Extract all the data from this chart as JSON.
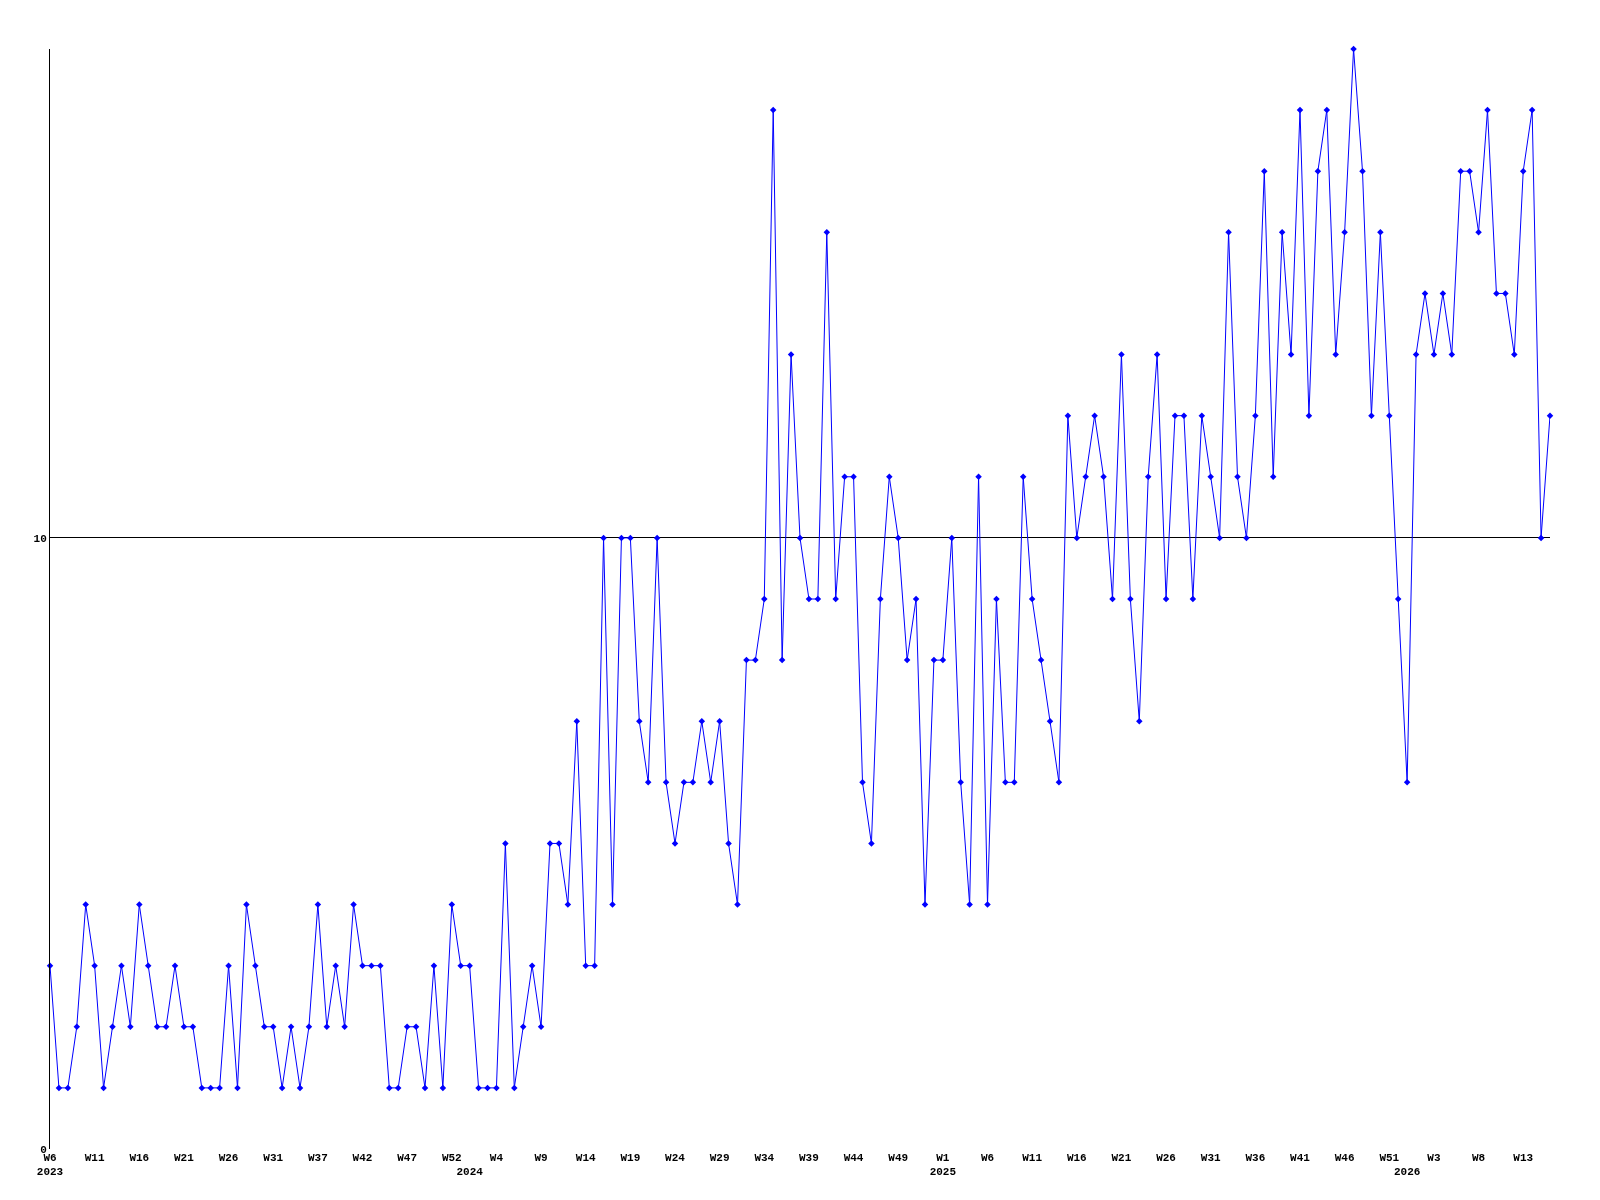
{
  "chart_data": {
    "type": "line",
    "categories": [
      "W6\n2023",
      null,
      null,
      null,
      null,
      "W11",
      null,
      null,
      null,
      null,
      "W16",
      null,
      null,
      null,
      null,
      "W21",
      null,
      null,
      null,
      null,
      "W26",
      null,
      null,
      null,
      null,
      "W31",
      null,
      null,
      null,
      null,
      "W37",
      null,
      null,
      null,
      null,
      "W42",
      null,
      null,
      null,
      null,
      "W47",
      null,
      null,
      null,
      null,
      "W52",
      null,
      "\n2024",
      null,
      null,
      "W4",
      null,
      null,
      null,
      null,
      "W9",
      null,
      null,
      null,
      null,
      "W14",
      null,
      null,
      null,
      null,
      "W19",
      null,
      null,
      null,
      null,
      "W24",
      null,
      null,
      null,
      null,
      "W29",
      null,
      null,
      null,
      null,
      "W34",
      null,
      null,
      null,
      null,
      "W39",
      null,
      null,
      null,
      null,
      "W44",
      null,
      null,
      null,
      null,
      "W49",
      null,
      null,
      null,
      null,
      "W1\n2025",
      null,
      null,
      null,
      null,
      "W6",
      null,
      null,
      null,
      null,
      "W11",
      null,
      null,
      null,
      null,
      "W16",
      null,
      null,
      null,
      null,
      "W21",
      null,
      null,
      null,
      null,
      "W26",
      null,
      null,
      null,
      null,
      "W31",
      null,
      null,
      null,
      null,
      "W36",
      null,
      null,
      null,
      null,
      "W41",
      null,
      null,
      null,
      null,
      "W46",
      null,
      null,
      null,
      null,
      "W51",
      null,
      "\n2026",
      null,
      null,
      "W3",
      null,
      null,
      null,
      null,
      "W8",
      null,
      null,
      null,
      null,
      "W13",
      null,
      null,
      null
    ],
    "series": [
      {
        "color": "#0000ff",
        "values": [
          3,
          1,
          1,
          2,
          4,
          3,
          1,
          2,
          3,
          2,
          4,
          3,
          2,
          2,
          3,
          2,
          2,
          1,
          1,
          1,
          3,
          1,
          4,
          3,
          2,
          2,
          1,
          2,
          1,
          2,
          4,
          2,
          3,
          2,
          4,
          3,
          3,
          3,
          1,
          1,
          2,
          2,
          1,
          3,
          1,
          4,
          3,
          3,
          1,
          1,
          1,
          5,
          1,
          2,
          3,
          2,
          5,
          5,
          4,
          7,
          3,
          3,
          10,
          4,
          10,
          10,
          7,
          6,
          10,
          6,
          5,
          6,
          6,
          7,
          6,
          7,
          5,
          4,
          8,
          8,
          9,
          17,
          8,
          13,
          10,
          9,
          9,
          15,
          9,
          11,
          11,
          6,
          5,
          9,
          11,
          10,
          8,
          9,
          4,
          8,
          8,
          10,
          6,
          4,
          11,
          4,
          9,
          6,
          6,
          11,
          9,
          8,
          7,
          6,
          12,
          10,
          11,
          12,
          11,
          9,
          13,
          9,
          7,
          11,
          13,
          9,
          12,
          12,
          9,
          12,
          11,
          10,
          15,
          11,
          10,
          12,
          16,
          11,
          15,
          13,
          17,
          12,
          16,
          17,
          13,
          15,
          18,
          16,
          12,
          15,
          12,
          9,
          6,
          13,
          14,
          13,
          14,
          13,
          16,
          16,
          15,
          17,
          14,
          14,
          13,
          16,
          17,
          10,
          12
        ]
      }
    ],
    "ylim": [
      0,
      18
    ],
    "yticks": [
      0,
      10
    ],
    "grid": "y",
    "marker": "diamond",
    "line_style": "solid",
    "legend": false
  }
}
